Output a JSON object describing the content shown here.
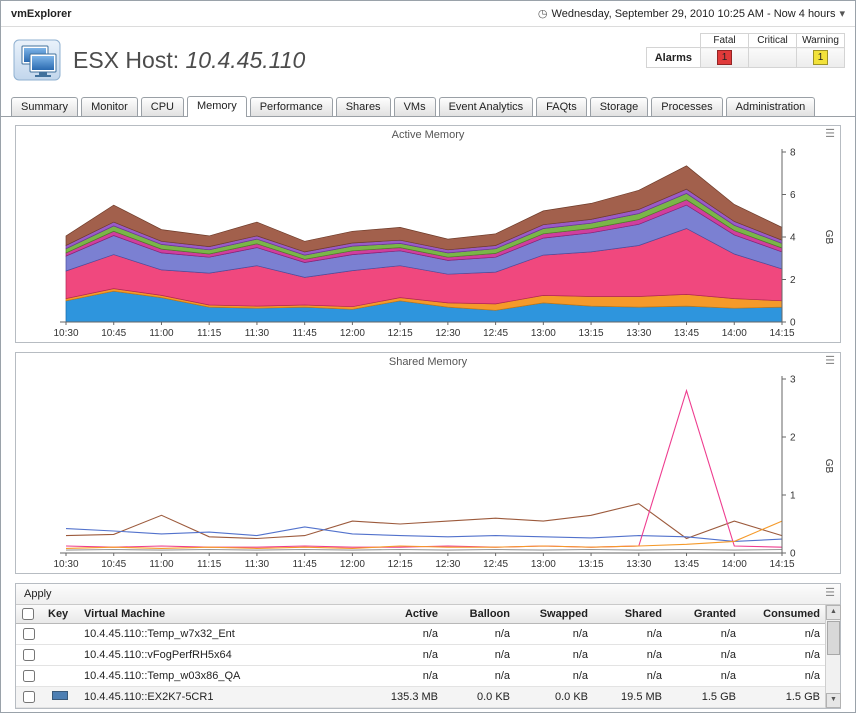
{
  "topbar": {
    "app_title": "vmExplorer",
    "time_range": "Wednesday, September 29, 2010 10:25 AM - Now 4 hours"
  },
  "icons": {
    "clock": "◷",
    "dropdown": "▾",
    "chart_options": "☰",
    "scroll_up": "▲",
    "scroll_down": "▼"
  },
  "header": {
    "title_prefix": "ESX Host:",
    "host_ip": "10.4.45.110"
  },
  "alarms": {
    "label": "Alarms",
    "columns": [
      "Fatal",
      "Critical",
      "Warning"
    ],
    "fatal_count": "1",
    "critical_count": "",
    "warning_count": "1",
    "fatal_color": "#e03a3a",
    "warning_color": "#f2e23a"
  },
  "tabs": {
    "active": "Memory",
    "items": [
      "Summary",
      "Monitor",
      "CPU",
      "Memory",
      "Performance",
      "Shares",
      "VMs",
      "Event Analytics",
      "FAQts",
      "Storage",
      "Processes",
      "Administration"
    ]
  },
  "chart_data": [
    {
      "type": "area",
      "stacked": true,
      "title": "Active Memory",
      "ylabel": "GB",
      "ylim": [
        0,
        8
      ],
      "yticks": [
        0,
        2,
        4,
        6,
        8
      ],
      "legend": "none",
      "x": [
        "10:30",
        "10:45",
        "11:00",
        "11:15",
        "11:30",
        "11:45",
        "12:00",
        "12:15",
        "12:30",
        "12:45",
        "13:00",
        "13:15",
        "13:30",
        "13:45",
        "14:00",
        "14:15"
      ],
      "series": [
        {
          "name": "vm-blue",
          "color": "#2e95dd",
          "stroke": "#1668a8",
          "values": [
            1.0,
            1.45,
            1.15,
            0.7,
            0.65,
            0.7,
            0.6,
            1.0,
            0.7,
            0.55,
            0.9,
            0.75,
            0.7,
            0.75,
            0.65,
            0.7
          ]
        },
        {
          "name": "vm-orange",
          "color": "#f59a2a",
          "stroke": "#c87912",
          "values": [
            0.1,
            0.12,
            0.1,
            0.1,
            0.1,
            0.1,
            0.12,
            0.15,
            0.2,
            0.3,
            0.35,
            0.45,
            0.5,
            0.55,
            0.45,
            0.3
          ]
        },
        {
          "name": "vm-pink",
          "color": "#f0487e",
          "stroke": "#b02555",
          "values": [
            1.3,
            1.6,
            1.2,
            1.5,
            1.9,
            1.3,
            1.7,
            1.5,
            1.35,
            1.5,
            1.9,
            2.1,
            2.4,
            3.1,
            2.1,
            1.5
          ]
        },
        {
          "name": "vm-violet",
          "color": "#7b80d2",
          "stroke": "#4a4fa0",
          "values": [
            0.7,
            0.9,
            0.8,
            0.75,
            0.85,
            0.7,
            0.75,
            0.7,
            0.65,
            0.7,
            0.8,
            0.9,
            1.0,
            1.1,
            0.9,
            0.8
          ]
        },
        {
          "name": "vm-magenta",
          "color": "#cf3f9e",
          "stroke": "#8f2070",
          "values": [
            0.15,
            0.2,
            0.18,
            0.15,
            0.18,
            0.15,
            0.18,
            0.15,
            0.15,
            0.18,
            0.2,
            0.2,
            0.22,
            0.25,
            0.2,
            0.18
          ]
        },
        {
          "name": "vm-green",
          "color": "#7ab648",
          "stroke": "#4e8024",
          "values": [
            0.2,
            0.25,
            0.22,
            0.2,
            0.22,
            0.2,
            0.22,
            0.2,
            0.2,
            0.22,
            0.25,
            0.25,
            0.28,
            0.3,
            0.25,
            0.22
          ]
        },
        {
          "name": "vm-purple",
          "color": "#9a5bc8",
          "stroke": "#6a3398",
          "values": [
            0.15,
            0.18,
            0.15,
            0.15,
            0.15,
            0.15,
            0.15,
            0.15,
            0.15,
            0.15,
            0.18,
            0.18,
            0.2,
            0.2,
            0.18,
            0.15
          ]
        },
        {
          "name": "vm-brown",
          "color": "#a2604c",
          "stroke": "#6f3c2a",
          "values": [
            0.45,
            0.8,
            0.55,
            0.5,
            0.65,
            0.5,
            0.55,
            0.6,
            0.5,
            0.55,
            0.65,
            0.75,
            0.9,
            1.1,
            0.8,
            0.6
          ]
        }
      ]
    },
    {
      "type": "line",
      "stacked": false,
      "title": "Shared Memory",
      "ylabel": "GB",
      "ylim": [
        0,
        3
      ],
      "yticks": [
        0,
        1,
        2,
        3
      ],
      "legend": "none",
      "x": [
        "10:30",
        "10:45",
        "11:00",
        "11:15",
        "11:30",
        "11:45",
        "12:00",
        "12:15",
        "12:30",
        "12:45",
        "13:00",
        "13:15",
        "13:30",
        "13:45",
        "14:00",
        "14:15"
      ],
      "series": [
        {
          "name": "vm-brown",
          "color": "#9c5a3c",
          "values": [
            0.3,
            0.32,
            0.65,
            0.28,
            0.25,
            0.3,
            0.55,
            0.5,
            0.55,
            0.6,
            0.55,
            0.65,
            0.85,
            0.25,
            0.55,
            0.3
          ]
        },
        {
          "name": "vm-blue",
          "color": "#5272cc",
          "values": [
            0.42,
            0.38,
            0.33,
            0.36,
            0.3,
            0.45,
            0.33,
            0.3,
            0.28,
            0.3,
            0.28,
            0.26,
            0.3,
            0.28,
            0.2,
            0.24
          ]
        },
        {
          "name": "vm-magenta",
          "color": "#ee3d8f",
          "values": [
            0.12,
            0.1,
            0.12,
            0.1,
            0.1,
            0.12,
            0.1,
            0.1,
            0.12,
            0.1,
            0.12,
            0.1,
            0.12,
            2.8,
            0.12,
            0.1
          ]
        },
        {
          "name": "vm-orange",
          "color": "#f59a2a",
          "values": [
            0.08,
            0.1,
            0.08,
            0.1,
            0.08,
            0.1,
            0.08,
            0.12,
            0.1,
            0.1,
            0.12,
            0.1,
            0.12,
            0.15,
            0.2,
            0.55
          ]
        },
        {
          "name": "vm-gray",
          "color": "#999999",
          "values": [
            0.05,
            0.06,
            0.05,
            0.06,
            0.05,
            0.06,
            0.05,
            0.06,
            0.05,
            0.06,
            0.05,
            0.06,
            0.05,
            0.06,
            0.05,
            0.06
          ]
        }
      ]
    }
  ],
  "table": {
    "apply_label": "Apply",
    "columns": [
      "",
      "Key",
      "Virtual Machine",
      "Active",
      "Balloon",
      "Swapped",
      "Shared",
      "Granted",
      "Consumed"
    ],
    "rows": [
      {
        "vm": "10.4.45.110::Temp_w7x32_Ent",
        "key_color": null,
        "active": "n/a",
        "balloon": "n/a",
        "swapped": "n/a",
        "shared": "n/a",
        "granted": "n/a",
        "consumed": "n/a",
        "highlight": false
      },
      {
        "vm": "10.4.45.110::vFogPerfRH5x64",
        "key_color": null,
        "active": "n/a",
        "balloon": "n/a",
        "swapped": "n/a",
        "shared": "n/a",
        "granted": "n/a",
        "consumed": "n/a",
        "highlight": false
      },
      {
        "vm": "10.4.45.110::Temp_w03x86_QA",
        "key_color": null,
        "active": "n/a",
        "balloon": "n/a",
        "swapped": "n/a",
        "shared": "n/a",
        "granted": "n/a",
        "consumed": "n/a",
        "highlight": false
      },
      {
        "vm": "10.4.45.110::EX2K7-5CR1",
        "key_color": "#4d7fb3",
        "active": "135.3 MB",
        "balloon": "0.0 KB",
        "swapped": "0.0 KB",
        "shared": "19.5 MB",
        "granted": "1.5 GB",
        "consumed": "1.5 GB",
        "highlight": true
      }
    ]
  }
}
